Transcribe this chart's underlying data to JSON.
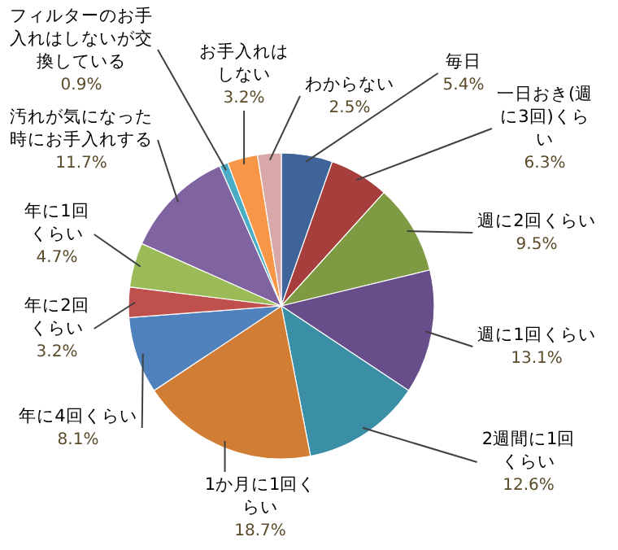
{
  "chart_data": {
    "type": "pie",
    "categories": [
      "毎日",
      "一日おき(週に3回)くらい",
      "週に2回くらい",
      "週に1回くらい",
      "2週間に1回くらい",
      "1か月に1回くらい",
      "年に4回くらい",
      "年に2回くらい",
      "年に1回くらい",
      "汚れが気になった時にお手入れする",
      "フィルターのお手入れはしないが交換している",
      "お手入れはしない",
      "わからない"
    ],
    "values": [
      5.4,
      6.3,
      9.5,
      13.1,
      12.6,
      18.7,
      8.1,
      3.2,
      4.7,
      11.7,
      0.9,
      3.2,
      2.5
    ],
    "colors": [
      "#3F6499",
      "#A63E3B",
      "#7E9A42",
      "#684D8B",
      "#3A8FA6",
      "#D17D33",
      "#4F81BD",
      "#C0504D",
      "#9BBB59",
      "#8064A2",
      "#4BACC6",
      "#F79646",
      "#D8A8A8"
    ],
    "value_labels": [
      "5.4%",
      "6.3%",
      "9.5%",
      "13.1%",
      "12.6%",
      "18.7%",
      "8.1%",
      "3.2%",
      "4.7%",
      "11.7%",
      "0.9%",
      "3.2%",
      "2.5%"
    ]
  }
}
